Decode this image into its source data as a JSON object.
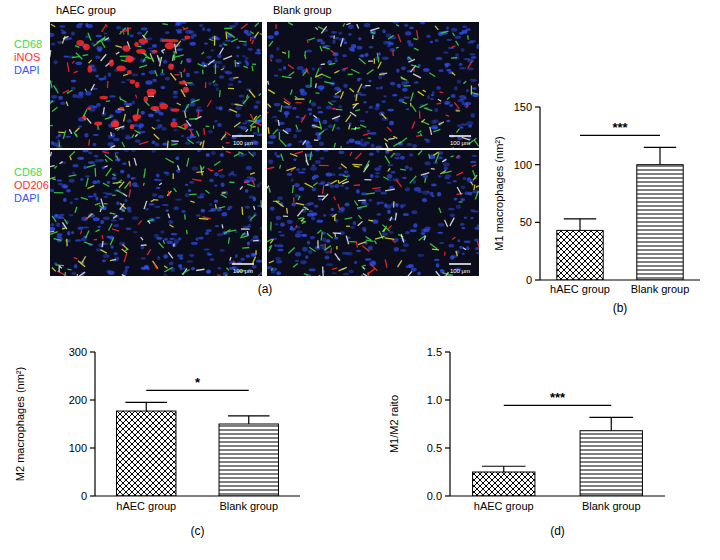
{
  "chart_data": [
    {
      "type": "bar",
      "panel_label": "(b)",
      "ylabel": "M1 macrophages (nm²)",
      "categories": [
        "hAEC group",
        "Blank group"
      ],
      "values": [
        43,
        100
      ],
      "errors": [
        10,
        15
      ],
      "color": "#000000",
      "ylim": [
        0,
        150
      ],
      "yticks": [
        0,
        50,
        100,
        150
      ],
      "annotation": "***"
    },
    {
      "type": "bar",
      "panel_label": "(c)",
      "ylabel": "M2 macrophages (nm²)",
      "categories": [
        "hAEC group",
        "Blank group"
      ],
      "values": [
        177,
        150
      ],
      "errors": [
        18,
        17
      ],
      "color": "#000000",
      "ylim": [
        0,
        300
      ],
      "yticks": [
        0,
        100,
        200,
        300
      ],
      "annotation": "*"
    },
    {
      "type": "bar",
      "panel_label": "(d)",
      "ylabel": "M1/M2 raito",
      "categories": [
        "hAEC group",
        "Blank group"
      ],
      "values": [
        0.25,
        0.68
      ],
      "errors": [
        0.06,
        0.14
      ],
      "color": "#000000",
      "ylim": [
        0,
        1.5
      ],
      "yticks": [
        {
          "value": 0,
          "label": "0.0"
        },
        0.5,
        {
          "value": 1,
          "label": "1.0"
        },
        1.5
      ],
      "annotation": "***"
    }
  ],
  "image_panel": {
    "panel_label": "(a)",
    "columns": [
      "hAEC group",
      "Blank group"
    ],
    "rows": [
      {
        "stains": [
          {
            "text": "CD68",
            "color": "#3ddc4a"
          },
          {
            "text": "iNOS",
            "color": "#ff2b2b"
          },
          {
            "text": "DAPI",
            "color": "#3355ff"
          }
        ]
      },
      {
        "stains": [
          {
            "text": "CD68",
            "color": "#3ddc4a"
          },
          {
            "text": "OD206",
            "color": "#ff2b2b"
          },
          {
            "text": "DAPI",
            "color": "#3355ff"
          }
        ]
      }
    ],
    "scale_bar": "100 μm"
  }
}
